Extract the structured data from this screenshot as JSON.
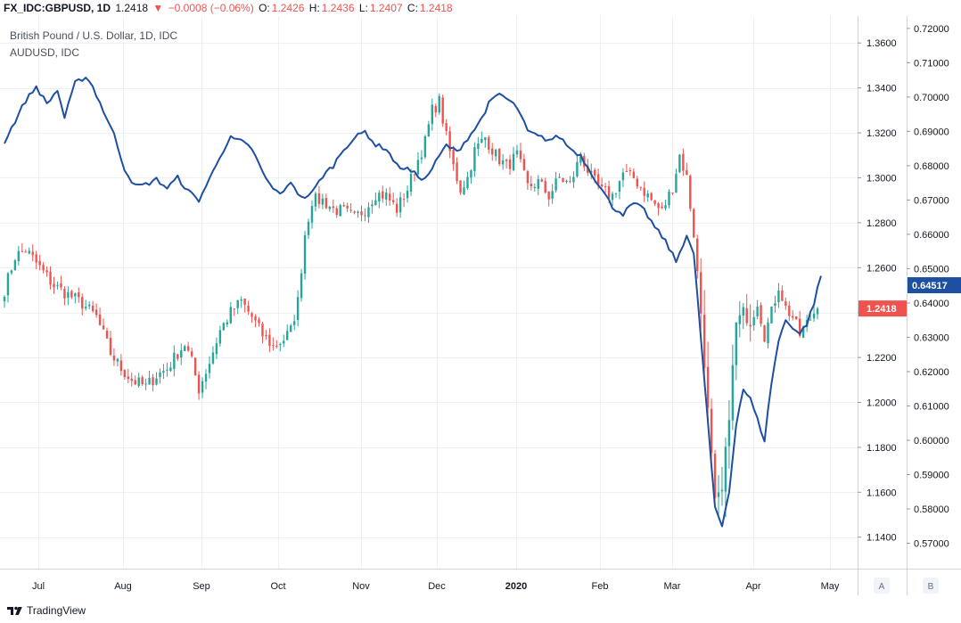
{
  "header": {
    "symbol": "FX_IDC:GBPUSD, 1D",
    "last": "1.2418",
    "arrow": "▼",
    "change": "−0.0008 (−0.06%)",
    "o_label": "O:",
    "o_value": "1.2426",
    "h_label": "H:",
    "h_value": "1.2436",
    "l_label": "L:",
    "l_value": "1.2407",
    "c_label": "C:",
    "c_value": "1.2418"
  },
  "legend": {
    "main_series": "British Pound / U.S. Dollar, 1D, IDC",
    "compare_series": "AUDUSD, IDC"
  },
  "footer": {
    "brand": "TradingView"
  },
  "scale_buttons": [
    "A",
    "B"
  ],
  "colors": {
    "up": "#26a69a",
    "down": "#ef5350",
    "line": "#1e4fa0",
    "grid": "#eef0f3"
  },
  "chart_data": {
    "type": "candlestick",
    "x_labels": [
      "Jul",
      "Aug",
      "Sep",
      "Oct",
      "Nov",
      "Dec",
      "2020",
      "Feb",
      "Mar",
      "Apr",
      "May"
    ],
    "gbpusd_axis": {
      "ticks": [
        "1.3600",
        "1.3400",
        "1.3200",
        "1.3000",
        "1.2800",
        "1.2600",
        "1.2400",
        "1.2200",
        "1.2000",
        "1.1800",
        "1.1600",
        "1.1400"
      ],
      "ylim": [
        1.126,
        1.372
      ],
      "last_label": "1.2418"
    },
    "audusd_axis": {
      "ticks": [
        "0.72000",
        "0.71000",
        "0.70000",
        "0.69000",
        "0.68000",
        "0.67000",
        "0.66000",
        "0.65000",
        "0.64000",
        "0.63000",
        "0.62000",
        "0.61000",
        "0.60000",
        "0.59000",
        "0.58000",
        "0.57000"
      ],
      "ylim": [
        0.5626,
        0.7236
      ],
      "last_label": "0.64517"
    },
    "gbpusd_close_path": [
      [
        0,
        1.25
      ],
      [
        3,
        1.265
      ],
      [
        6,
        1.268
      ],
      [
        10,
        1.26
      ],
      [
        14,
        1.252
      ],
      [
        18,
        1.248
      ],
      [
        22,
        1.244
      ],
      [
        26,
        1.238
      ],
      [
        30,
        1.222
      ],
      [
        33,
        1.215
      ],
      [
        36,
        1.21
      ],
      [
        40,
        1.207
      ],
      [
        43,
        1.212
      ],
      [
        46,
        1.215
      ],
      [
        49,
        1.222
      ],
      [
        51,
        1.226
      ],
      [
        53,
        1.218
      ],
      [
        55,
        1.206
      ],
      [
        58,
        1.218
      ],
      [
        61,
        1.232
      ],
      [
        64,
        1.24
      ],
      [
        67,
        1.245
      ],
      [
        70,
        1.238
      ],
      [
        73,
        1.23
      ],
      [
        76,
        1.225
      ],
      [
        79,
        1.228
      ],
      [
        81,
        1.232
      ],
      [
        83,
        1.245
      ],
      [
        85,
        1.275
      ],
      [
        87,
        1.29
      ],
      [
        90,
        1.29
      ],
      [
        93,
        1.286
      ],
      [
        96,
        1.285
      ],
      [
        99,
        1.282
      ],
      [
        102,
        1.286
      ],
      [
        105,
        1.293
      ],
      [
        108,
        1.292
      ],
      [
        111,
        1.286
      ],
      [
        114,
        1.295
      ],
      [
        117,
        1.308
      ],
      [
        119,
        1.316
      ],
      [
        121,
        1.33
      ],
      [
        123,
        1.334
      ],
      [
        125,
        1.318
      ],
      [
        127,
        1.305
      ],
      [
        129,
        1.295
      ],
      [
        131,
        1.3
      ],
      [
        133,
        1.312
      ],
      [
        136,
        1.318
      ],
      [
        139,
        1.31
      ],
      [
        142,
        1.305
      ],
      [
        145,
        1.31
      ],
      [
        148,
        1.296
      ],
      [
        151,
        1.298
      ],
      [
        154,
        1.292
      ],
      [
        157,
        1.3
      ],
      [
        160,
        1.297
      ],
      [
        163,
        1.31
      ],
      [
        166,
        1.3
      ],
      [
        169,
        1.294
      ],
      [
        172,
        1.292
      ],
      [
        175,
        1.302
      ],
      [
        178,
        1.3
      ],
      [
        181,
        1.294
      ],
      [
        184,
        1.288
      ],
      [
        186,
        1.285
      ],
      [
        189,
        1.296
      ],
      [
        191,
        1.31
      ],
      [
        193,
        1.3
      ],
      [
        195,
        1.275
      ],
      [
        197,
        1.24
      ],
      [
        199,
        1.196
      ],
      [
        201,
        1.155
      ],
      [
        203,
        1.16
      ],
      [
        205,
        1.195
      ],
      [
        207,
        1.235
      ],
      [
        209,
        1.24
      ],
      [
        211,
        1.236
      ],
      [
        213,
        1.245
      ],
      [
        215,
        1.23
      ],
      [
        217,
        1.24
      ],
      [
        219,
        1.252
      ],
      [
        221,
        1.242
      ],
      [
        223,
        1.238
      ],
      [
        225,
        1.23
      ],
      [
        227,
        1.235
      ],
      [
        229,
        1.24
      ],
      [
        231,
        1.2418
      ]
    ],
    "audusd_line_path": [
      [
        0,
        0.687
      ],
      [
        3,
        0.693
      ],
      [
        6,
        0.699
      ],
      [
        9,
        0.703
      ],
      [
        12,
        0.698
      ],
      [
        15,
        0.702
      ],
      [
        17,
        0.694
      ],
      [
        20,
        0.704
      ],
      [
        23,
        0.706
      ],
      [
        25,
        0.703
      ],
      [
        28,
        0.696
      ],
      [
        31,
        0.689
      ],
      [
        34,
        0.679
      ],
      [
        37,
        0.674
      ],
      [
        40,
        0.6745
      ],
      [
        43,
        0.676
      ],
      [
        46,
        0.6735
      ],
      [
        49,
        0.6765
      ],
      [
        52,
        0.6725
      ],
      [
        55,
        0.67
      ],
      [
        58,
        0.676
      ],
      [
        61,
        0.683
      ],
      [
        64,
        0.688
      ],
      [
        67,
        0.687
      ],
      [
        70,
        0.685
      ],
      [
        73,
        0.678
      ],
      [
        76,
        0.673
      ],
      [
        79,
        0.672
      ],
      [
        81,
        0.6755
      ],
      [
        84,
        0.6705
      ],
      [
        87,
        0.672
      ],
      [
        90,
        0.677
      ],
      [
        93,
        0.68
      ],
      [
        96,
        0.685
      ],
      [
        99,
        0.688
      ],
      [
        102,
        0.69
      ],
      [
        105,
        0.686
      ],
      [
        108,
        0.685
      ],
      [
        111,
        0.68
      ],
      [
        114,
        0.679
      ],
      [
        117,
        0.677
      ],
      [
        119,
        0.676
      ],
      [
        122,
        0.681
      ],
      [
        125,
        0.686
      ],
      [
        128,
        0.684
      ],
      [
        131,
        0.688
      ],
      [
        134,
        0.692
      ],
      [
        137,
        0.698
      ],
      [
        140,
        0.701
      ],
      [
        142,
        0.6995
      ],
      [
        145,
        0.697
      ],
      [
        148,
        0.69
      ],
      [
        151,
        0.6885
      ],
      [
        154,
        0.6875
      ],
      [
        157,
        0.6885
      ],
      [
        160,
        0.685
      ],
      [
        163,
        0.683
      ],
      [
        166,
        0.678
      ],
      [
        169,
        0.673
      ],
      [
        172,
        0.668
      ],
      [
        175,
        0.666
      ],
      [
        178,
        0.669
      ],
      [
        181,
        0.667
      ],
      [
        184,
        0.662
      ],
      [
        187,
        0.658
      ],
      [
        190,
        0.652
      ],
      [
        193,
        0.66
      ],
      [
        195,
        0.654
      ],
      [
        197,
        0.63
      ],
      [
        199,
        0.605
      ],
      [
        201,
        0.58
      ],
      [
        203,
        0.575
      ],
      [
        205,
        0.585
      ],
      [
        207,
        0.605
      ],
      [
        209,
        0.615
      ],
      [
        211,
        0.612
      ],
      [
        213,
        0.606
      ],
      [
        215,
        0.6
      ],
      [
        217,
        0.617
      ],
      [
        219,
        0.629
      ],
      [
        221,
        0.635
      ],
      [
        223,
        0.633
      ],
      [
        225,
        0.631
      ],
      [
        227,
        0.634
      ],
      [
        229,
        0.64
      ],
      [
        231,
        0.648
      ],
      [
        232,
        0.64517
      ]
    ]
  }
}
